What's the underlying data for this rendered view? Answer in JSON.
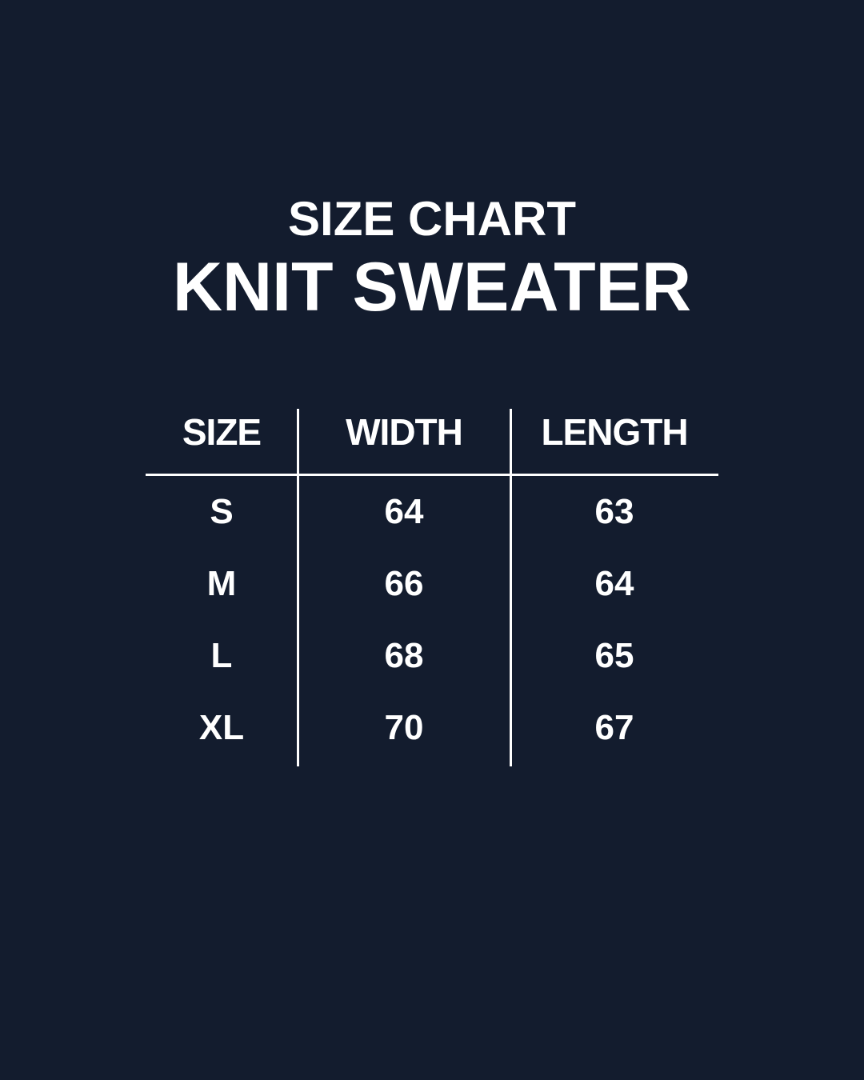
{
  "heading": {
    "subtitle": "SIZE CHART",
    "title": "KNIT SWEATER"
  },
  "table": {
    "headers": [
      "SIZE",
      "WIDTH",
      "LENGTH"
    ],
    "rows": [
      [
        "S",
        "64",
        "63"
      ],
      [
        "M",
        "66",
        "64"
      ],
      [
        "L",
        "68",
        "65"
      ],
      [
        "XL",
        "70",
        "67"
      ]
    ]
  },
  "colors": {
    "background": "#131c2e",
    "text": "#ffffff"
  }
}
